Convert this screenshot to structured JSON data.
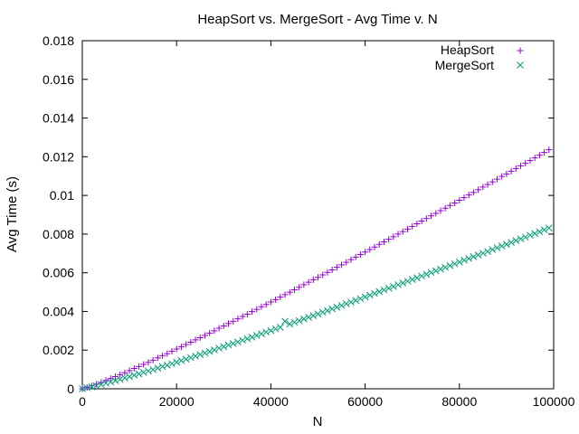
{
  "chart_data": {
    "type": "scatter",
    "title": "HeapSort vs. MergeSort - Avg Time v. N",
    "xlabel": "N",
    "ylabel": "Avg Time (s)",
    "xlim": [
      0,
      100000
    ],
    "ylim": [
      0,
      0.018
    ],
    "xticks": [
      "0",
      "20000",
      "40000",
      "60000",
      "80000",
      "100000"
    ],
    "yticks": [
      "0",
      "0.002",
      "0.004",
      "0.006",
      "0.008",
      "0.01",
      "0.012",
      "0.014",
      "0.016",
      "0.018"
    ],
    "grid": false,
    "legend_position": "top-right",
    "x": [
      0,
      1000,
      2000,
      3000,
      4000,
      5000,
      6000,
      7000,
      8000,
      9000,
      10000,
      11000,
      12000,
      13000,
      14000,
      15000,
      16000,
      17000,
      18000,
      19000,
      20000,
      21000,
      22000,
      23000,
      24000,
      25000,
      26000,
      27000,
      28000,
      29000,
      30000,
      31000,
      32000,
      33000,
      34000,
      35000,
      36000,
      37000,
      38000,
      39000,
      40000,
      41000,
      42000,
      43000,
      44000,
      45000,
      46000,
      47000,
      48000,
      49000,
      50000,
      51000,
      52000,
      53000,
      54000,
      55000,
      56000,
      57000,
      58000,
      59000,
      60000,
      61000,
      62000,
      63000,
      64000,
      65000,
      66000,
      67000,
      68000,
      69000,
      70000,
      71000,
      72000,
      73000,
      74000,
      75000,
      76000,
      77000,
      78000,
      79000,
      80000,
      81000,
      82000,
      83000,
      84000,
      85000,
      86000,
      87000,
      88000,
      89000,
      90000,
      91000,
      92000,
      93000,
      94000,
      95000,
      96000,
      97000,
      98000,
      99000
    ],
    "series": [
      {
        "name": "HeapSort",
        "marker": "plus",
        "color": "#9400d3",
        "values": [
          0.0,
          7e-05,
          0.00015,
          0.00024,
          0.00033,
          0.00043,
          0.00053,
          0.00063,
          0.00073,
          0.00083,
          0.00094,
          0.00105,
          0.00115,
          0.00126,
          0.00137,
          0.00148,
          0.0016,
          0.00171,
          0.00182,
          0.00194,
          0.00206,
          0.00217,
          0.00229,
          0.00241,
          0.00253,
          0.00264,
          0.00276,
          0.00288,
          0.003,
          0.00313,
          0.00325,
          0.00337,
          0.00349,
          0.00362,
          0.00374,
          0.00386,
          0.00399,
          0.00411,
          0.00424,
          0.00436,
          0.00449,
          0.00461,
          0.00474,
          0.00487,
          0.00499,
          0.00512,
          0.00525,
          0.00538,
          0.00551,
          0.00564,
          0.00576,
          0.00589,
          0.00602,
          0.00615,
          0.00628,
          0.00641,
          0.00654,
          0.00668,
          0.00681,
          0.00694,
          0.00707,
          0.0072,
          0.00733,
          0.00747,
          0.0076,
          0.00773,
          0.00786,
          0.008,
          0.00813,
          0.00826,
          0.0084,
          0.00853,
          0.00867,
          0.0088,
          0.00894,
          0.00907,
          0.00921,
          0.00934,
          0.00948,
          0.00961,
          0.00975,
          0.00988,
          0.01002,
          0.01015,
          0.01029,
          0.01043,
          0.01056,
          0.0107,
          0.01084,
          0.01098,
          0.01111,
          0.01125,
          0.01139,
          0.01153,
          0.01166,
          0.0118,
          0.01194,
          0.01208,
          0.01222,
          0.01236
        ]
      },
      {
        "name": "MergeSort",
        "marker": "cross",
        "color": "#009e73",
        "values": [
          0.0,
          5e-05,
          0.0001,
          0.00016,
          0.00022,
          0.00029,
          0.00035,
          0.00042,
          0.00049,
          0.00056,
          0.00063,
          0.0007,
          0.00077,
          0.00085,
          0.00092,
          0.00099,
          0.00107,
          0.00115,
          0.00122,
          0.0013,
          0.00138,
          0.00146,
          0.00153,
          0.00161,
          0.00169,
          0.00177,
          0.00185,
          0.00193,
          0.00201,
          0.0021,
          0.00218,
          0.00226,
          0.00234,
          0.00242,
          0.00251,
          0.00259,
          0.00267,
          0.00276,
          0.00284,
          0.00293,
          0.00301,
          0.0031,
          0.00318,
          0.00349,
          0.00335,
          0.00344,
          0.00352,
          0.00361,
          0.0037,
          0.00378,
          0.00387,
          0.00396,
          0.00404,
          0.00413,
          0.00422,
          0.00431,
          0.0044,
          0.00448,
          0.00457,
          0.00466,
          0.00475,
          0.00484,
          0.00493,
          0.00502,
          0.00511,
          0.0052,
          0.00529,
          0.00538,
          0.00547,
          0.00556,
          0.00565,
          0.00574,
          0.00583,
          0.00592,
          0.00601,
          0.0061,
          0.00619,
          0.00628,
          0.00637,
          0.00646,
          0.00655,
          0.00665,
          0.00674,
          0.00683,
          0.00692,
          0.00701,
          0.0071,
          0.0072,
          0.00729,
          0.00738,
          0.00747,
          0.00757,
          0.00766,
          0.00775,
          0.00784,
          0.00794,
          0.00803,
          0.00812,
          0.00822,
          0.00831
        ]
      }
    ]
  }
}
